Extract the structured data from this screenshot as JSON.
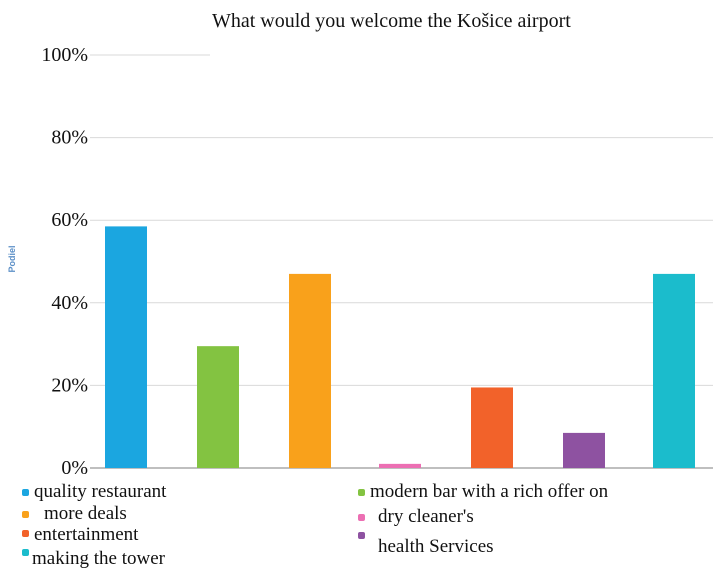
{
  "chart_data": {
    "type": "bar",
    "title": "What would you welcome the Košice airport",
    "xlabel": "",
    "ylabel": "Podiel",
    "ylim": [
      0,
      100
    ],
    "yticks": [
      "0%",
      "20%",
      "40%",
      "60%",
      "80%",
      "100%"
    ],
    "grid": true,
    "legend_position": "bottom",
    "categories": [
      "quality restaurant",
      "modern bar with a rich offer on",
      "more deals",
      "dry cleaner's",
      "entertainment",
      "health Services",
      "making the tower"
    ],
    "values": [
      58.5,
      29.5,
      47,
      1,
      19.5,
      8.5,
      47
    ],
    "colors": [
      "#1ba6e0",
      "#83c341",
      "#f9a11b",
      "#ec6fb3",
      "#f2622a",
      "#8e52a1",
      "#1bbccc"
    ]
  }
}
